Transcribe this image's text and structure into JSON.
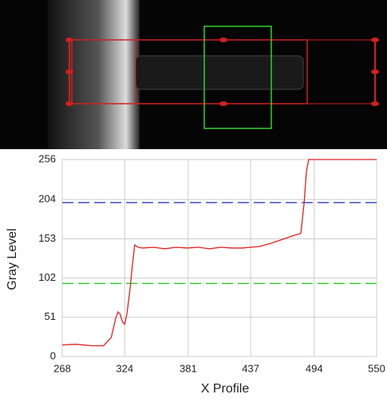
{
  "chart_data": {
    "type": "line",
    "x_label": "X Profile",
    "y_label": "Gray Level",
    "x": [
      268,
      280,
      295,
      305,
      312,
      316,
      318,
      320,
      322,
      324,
      326,
      329,
      331,
      333,
      336,
      340,
      350,
      360,
      370,
      380,
      390,
      400,
      410,
      420,
      430,
      437,
      445,
      455,
      465,
      475,
      482,
      485,
      487,
      489,
      500,
      550
    ],
    "values": [
      15,
      16,
      14,
      14,
      25,
      50,
      58,
      55,
      45,
      42,
      55,
      90,
      120,
      145,
      142,
      141,
      142,
      140,
      142,
      141,
      142,
      140,
      142,
      141,
      141,
      142,
      143,
      147,
      152,
      157,
      160,
      200,
      240,
      256,
      256,
      256
    ],
    "color": "#e02020",
    "reference_lines": [
      {
        "value": 200,
        "color": "#3b4fd0"
      },
      {
        "value": 95,
        "color": "#33cc33"
      }
    ],
    "xlim": [
      268,
      550
    ],
    "xticks": [
      268,
      324,
      381,
      437,
      494,
      550
    ],
    "ylim": [
      0,
      256
    ],
    "yticks": [
      0,
      51,
      102,
      153,
      204,
      256
    ],
    "grid": true
  }
}
